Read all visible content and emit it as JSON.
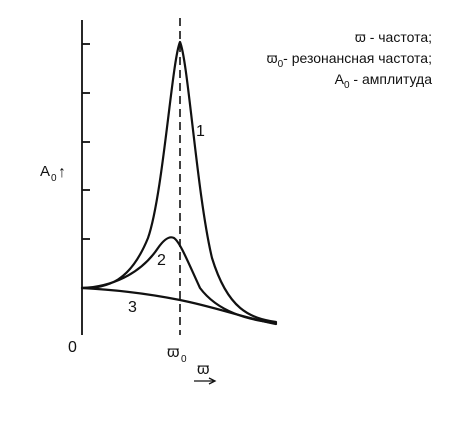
{
  "legend": {
    "line1_symbol": "ϖ",
    "line1_text": " - частота;",
    "line2_symbol": "ϖ",
    "line2_sub": "0",
    "line2_text": "- резонансная частота;",
    "line3_symbol": "A",
    "line3_sub": "0",
    "line3_text": " - амплитуда"
  },
  "axes": {
    "y_symbol": "A",
    "y_sub": "0",
    "y_arrow": "↑",
    "origin": "0",
    "x_symbol": "ϖ",
    "resonance_symbol": "ϖ",
    "resonance_sub": "0"
  },
  "curves": [
    {
      "label": "1",
      "description": "sharp resonance peak"
    },
    {
      "label": "2",
      "description": "moderate resonance peak"
    },
    {
      "label": "3",
      "description": "no resonance peak"
    }
  ],
  "colors": {
    "stroke": "#111111",
    "background": "#ffffff"
  }
}
